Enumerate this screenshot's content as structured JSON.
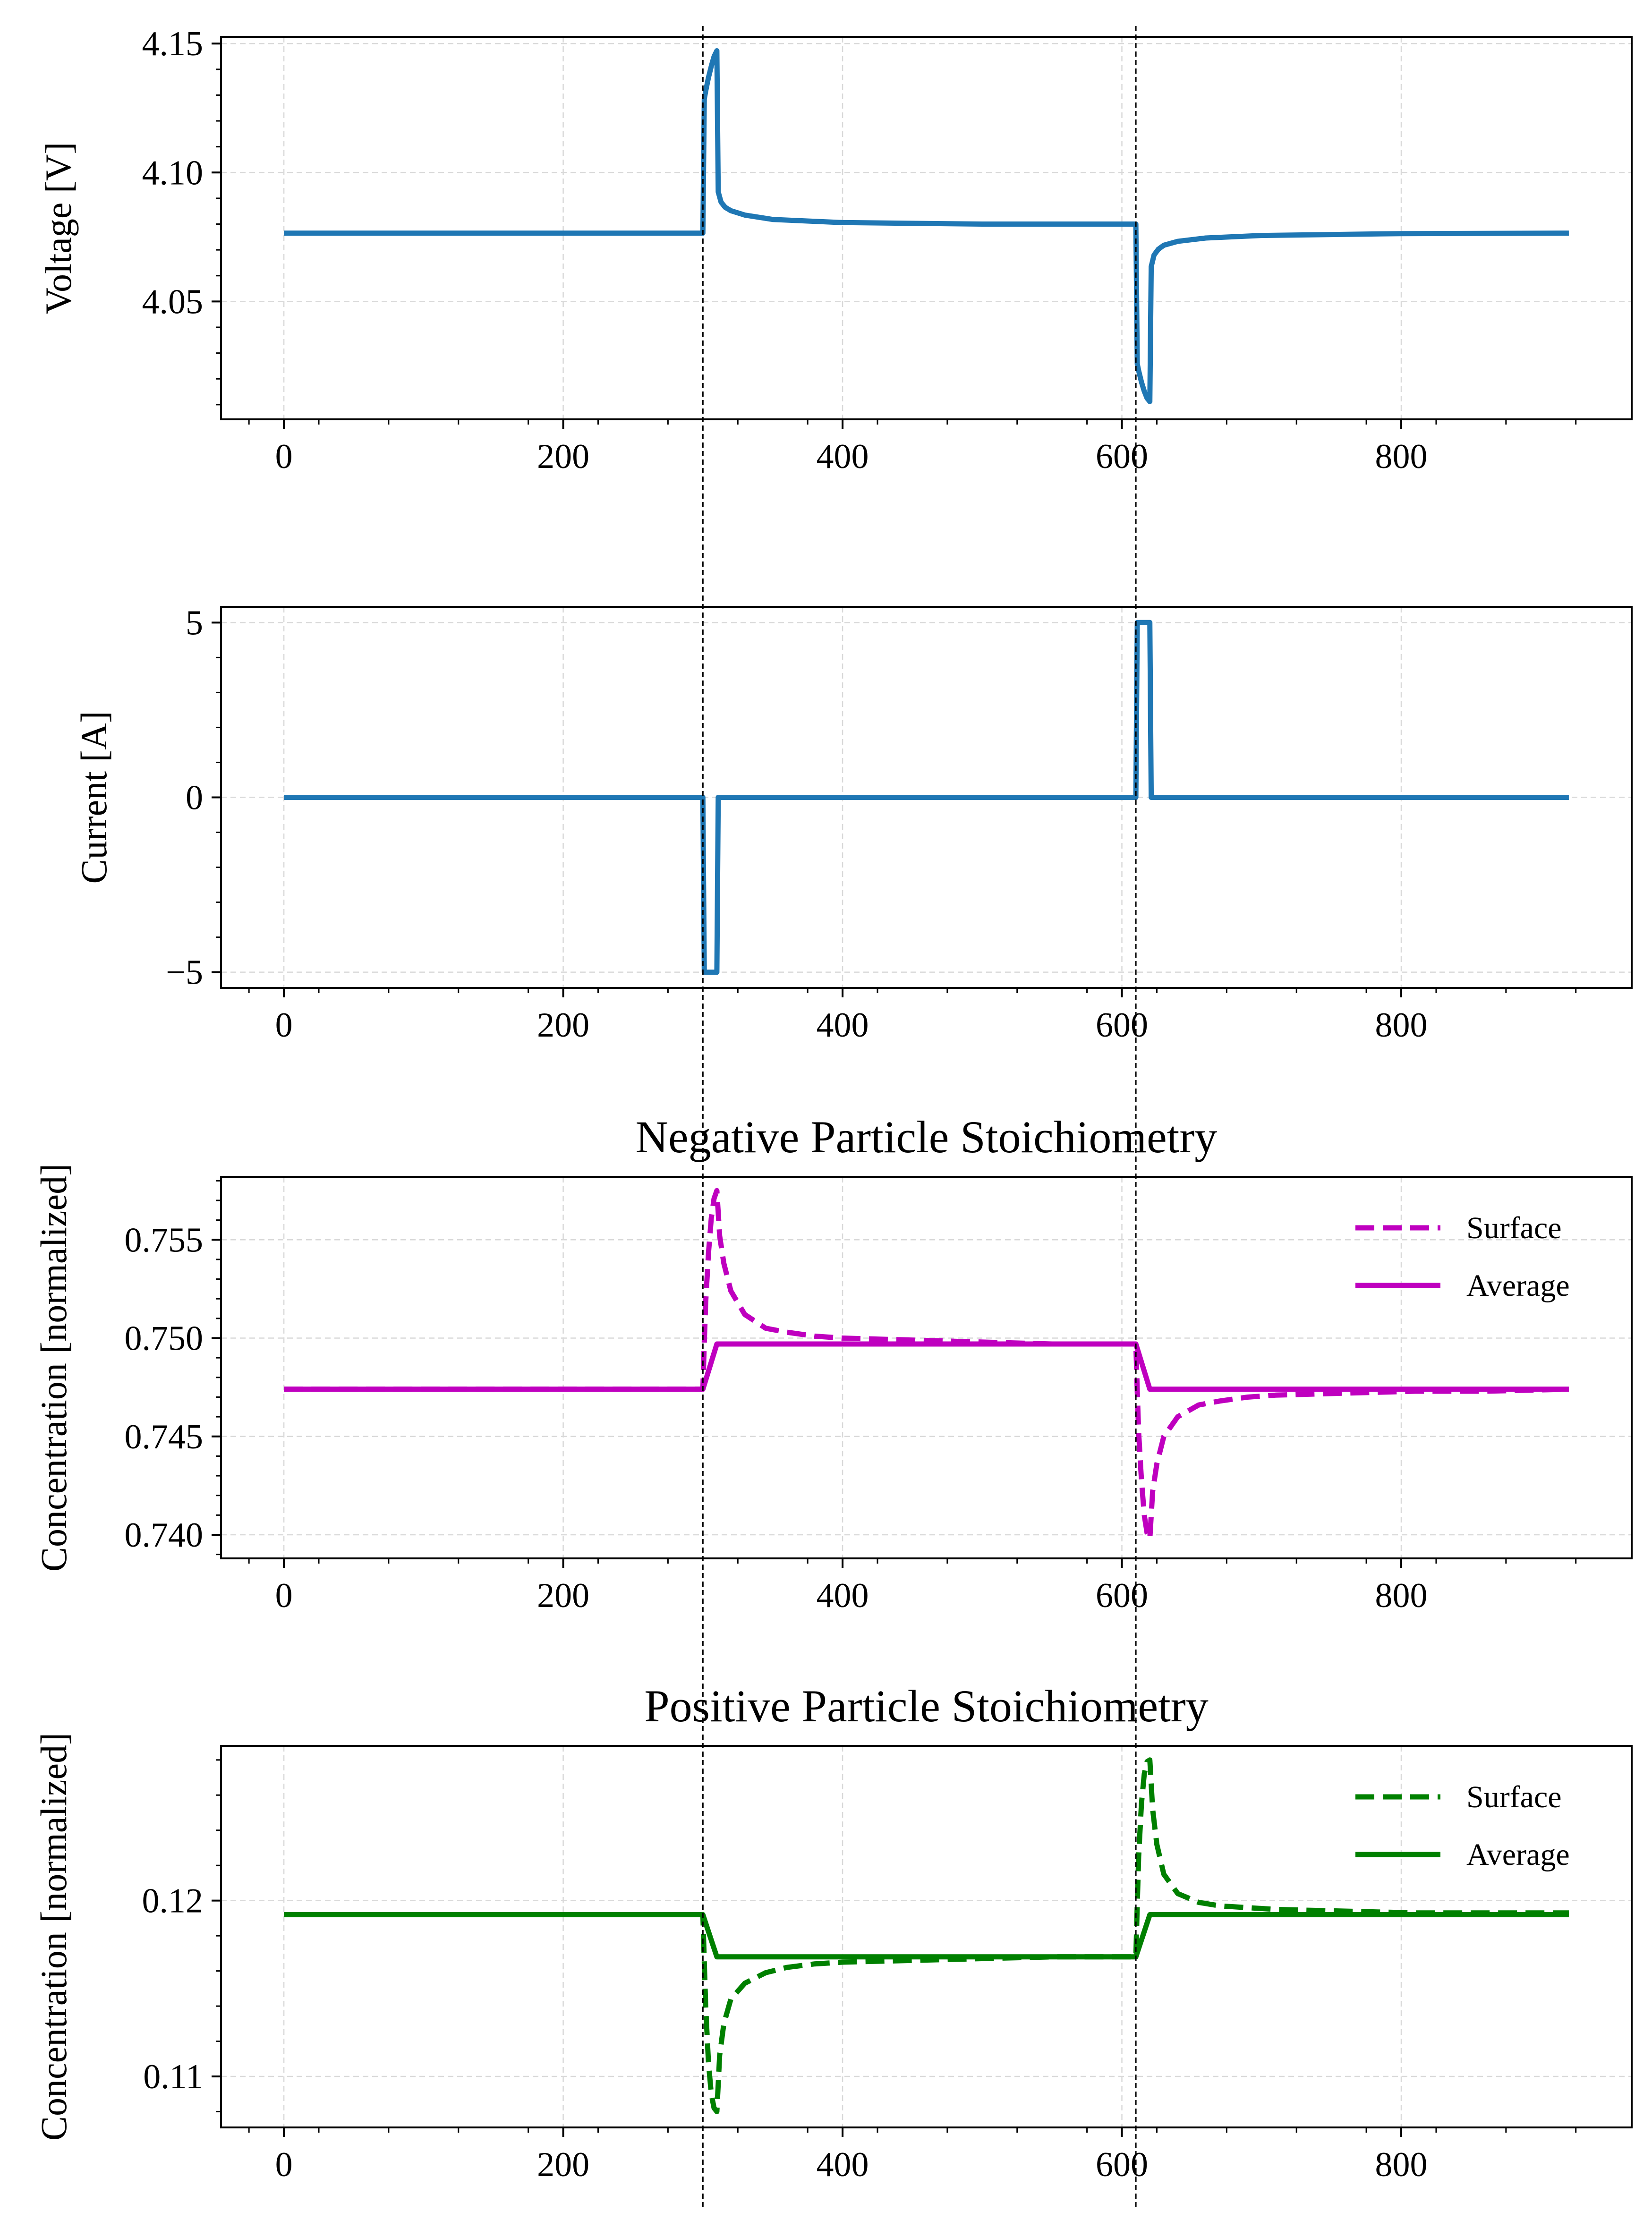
{
  "colors": {
    "voltage": "#1f77b4",
    "current": "#1f77b4",
    "negative": "#bf00bf",
    "positive": "#008000",
    "grid": "#d9d9d9",
    "marker_line": "#000000"
  },
  "chart_data": [
    {
      "type": "line",
      "title": "",
      "xlabel": "",
      "ylabel": "Voltage [V]",
      "xlim": [
        -45,
        965
      ],
      "ylim": [
        4.0043,
        4.1526
      ],
      "xticks": [
        0,
        200,
        400,
        600,
        800
      ],
      "xtick_labels": [
        "0",
        "200",
        "400",
        "600",
        "800"
      ],
      "yticks": [
        4.05,
        4.1,
        4.15
      ],
      "ytick_labels": [
        "4.05",
        "4.10",
        "4.15"
      ],
      "grid": true,
      "vlines": [
        300,
        610
      ],
      "series": [
        {
          "style": "solid",
          "color": "#1f77b4",
          "x": [
            0,
            300,
            301,
            302,
            304,
            306,
            308,
            310,
            311,
            313,
            316,
            320,
            330,
            350,
            400,
            500,
            610,
            611,
            612,
            614,
            616,
            618,
            620,
            621,
            623,
            626,
            630,
            640,
            660,
            700,
            800,
            920
          ],
          "y": [
            4.0765,
            4.0765,
            4.1285,
            4.1315,
            4.1368,
            4.1412,
            4.145,
            4.1472,
            4.0925,
            4.0885,
            4.0865,
            4.0852,
            4.0835,
            4.0818,
            4.0806,
            4.08,
            4.08,
            4.0258,
            4.0232,
            4.0188,
            4.0152,
            4.0125,
            4.0112,
            4.0635,
            4.068,
            4.0702,
            4.0718,
            4.0733,
            4.0746,
            4.0756,
            4.0763,
            4.0765
          ]
        }
      ]
    },
    {
      "type": "line",
      "title": "",
      "xlabel": "",
      "ylabel": "Current [A]",
      "xlim": [
        -45,
        965
      ],
      "ylim": [
        -5.45,
        5.45
      ],
      "xticks": [
        0,
        200,
        400,
        600,
        800
      ],
      "xtick_labels": [
        "0",
        "200",
        "400",
        "600",
        "800"
      ],
      "yticks": [
        -5,
        0,
        5
      ],
      "ytick_labels": [
        "−5",
        "0",
        "5"
      ],
      "grid": true,
      "vlines": [
        300,
        610
      ],
      "series": [
        {
          "style": "solid",
          "color": "#1f77b4",
          "x": [
            0,
            300,
            301,
            310,
            311,
            610,
            611,
            620,
            621,
            920
          ],
          "y": [
            0,
            0,
            -5,
            -5,
            0,
            0,
            5,
            5,
            0,
            0
          ]
        }
      ]
    },
    {
      "type": "line",
      "title": "Negative Particle Stoichiometry",
      "xlabel": "",
      "ylabel": "Concentration [normalized]",
      "xlim": [
        -45,
        965
      ],
      "ylim": [
        0.7388,
        0.7582
      ],
      "xticks": [
        0,
        200,
        400,
        600,
        800
      ],
      "xtick_labels": [
        "0",
        "200",
        "400",
        "600",
        "800"
      ],
      "yticks": [
        0.74,
        0.745,
        0.75,
        0.755
      ],
      "ytick_labels": [
        "0.740",
        "0.745",
        "0.750",
        "0.755"
      ],
      "grid": true,
      "legend": "upper right",
      "vlines": [
        300,
        610
      ],
      "series": [
        {
          "name": "Surface",
          "style": "dashed",
          "color": "#bf00bf",
          "x": [
            0,
            300,
            301,
            302,
            304,
            306,
            308,
            310,
            312,
            315,
            320,
            330,
            345,
            360,
            380,
            400,
            450,
            500,
            550,
            610,
            611,
            612,
            614,
            616,
            618,
            620,
            622,
            625,
            630,
            640,
            655,
            670,
            690,
            710,
            760,
            810,
            860,
            920
          ],
          "y": [
            0.7474,
            0.7474,
            0.7498,
            0.7518,
            0.7543,
            0.7561,
            0.7571,
            0.7575,
            0.7552,
            0.7538,
            0.7524,
            0.7512,
            0.7505,
            0.7503,
            0.7501,
            0.75,
            0.7499,
            0.7498,
            0.7497,
            0.7497,
            0.7473,
            0.7452,
            0.7428,
            0.741,
            0.7401,
            0.7398,
            0.7422,
            0.7436,
            0.745,
            0.746,
            0.7466,
            0.7468,
            0.747,
            0.7471,
            0.7472,
            0.7473,
            0.7473,
            0.7474
          ]
        },
        {
          "name": "Average",
          "style": "solid",
          "color": "#bf00bf",
          "x": [
            0,
            300,
            310,
            610,
            620,
            920
          ],
          "y": [
            0.7474,
            0.7474,
            0.7497,
            0.7497,
            0.7474,
            0.7474
          ]
        }
      ]
    },
    {
      "type": "line",
      "title": "Positive Particle Stoichiometry",
      "xlabel": "",
      "ylabel": "Concentration [normalized]",
      "xlim": [
        -45,
        965
      ],
      "ylim": [
        0.1071,
        0.1288
      ],
      "xticks": [
        0,
        200,
        400,
        600,
        800
      ],
      "xtick_labels": [
        "0",
        "200",
        "400",
        "600",
        "800"
      ],
      "yticks": [
        0.11,
        0.12
      ],
      "ytick_labels": [
        "0.11",
        "0.12"
      ],
      "grid": true,
      "legend": "upper right",
      "vlines": [
        300,
        610
      ],
      "series": [
        {
          "name": "Surface",
          "style": "dashed",
          "color": "#008000",
          "x": [
            0,
            300,
            301,
            302,
            304,
            306,
            308,
            310,
            312,
            315,
            320,
            330,
            345,
            360,
            380,
            400,
            450,
            500,
            550,
            610,
            611,
            612,
            614,
            616,
            618,
            620,
            622,
            625,
            630,
            640,
            655,
            670,
            690,
            710,
            760,
            810,
            860,
            920
          ],
          "y": [
            0.1192,
            0.1192,
            0.1165,
            0.114,
            0.1108,
            0.109,
            0.1082,
            0.108,
            0.1112,
            0.113,
            0.1144,
            0.1153,
            0.1159,
            0.1162,
            0.1164,
            0.1165,
            0.1166,
            0.1167,
            0.1168,
            0.1168,
            0.1198,
            0.1225,
            0.1255,
            0.1272,
            0.1279,
            0.128,
            0.1252,
            0.1232,
            0.1215,
            0.1204,
            0.1199,
            0.1197,
            0.1196,
            0.1195,
            0.1194,
            0.1193,
            0.1193,
            0.1193
          ]
        },
        {
          "name": "Average",
          "style": "solid",
          "color": "#008000",
          "x": [
            0,
            300,
            310,
            610,
            620,
            920
          ],
          "y": [
            0.1192,
            0.1192,
            0.1168,
            0.1168,
            0.1192,
            0.1192
          ]
        }
      ]
    }
  ]
}
